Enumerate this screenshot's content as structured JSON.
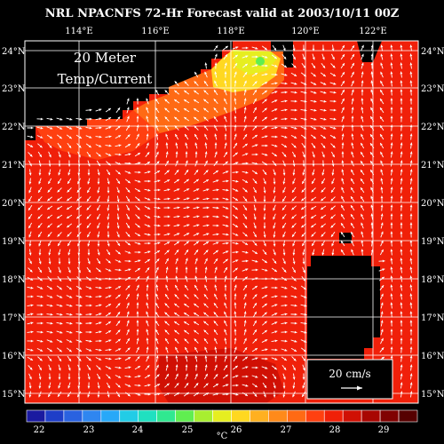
{
  "title": "NRL NPACNFS 72-Hr Forecast valid at 2003/10/11 00Z",
  "panel_label_line1": "20 Meter",
  "panel_label_line2": "Temp/Current",
  "scale_label": "20 cm/s",
  "longitude_labels": [
    "114°E",
    "116°E",
    "118°E",
    "120°E",
    "122°E"
  ],
  "latitude_labels": [
    "24°N",
    "23°N",
    "22°N",
    "21°N",
    "20°N",
    "19°N",
    "18°N",
    "17°N",
    "16°N",
    "15°N"
  ],
  "colorbar": {
    "unit": "°C",
    "tick_labels": [
      "22",
      "23",
      "24",
      "25",
      "26",
      "27",
      "28",
      "29"
    ],
    "colors": [
      "#1a1aa0",
      "#1e3ec8",
      "#2a62e0",
      "#2f86f0",
      "#28a8f8",
      "#22cce6",
      "#20e0c0",
      "#30e890",
      "#60ee50",
      "#a8ee30",
      "#e6ee20",
      "#ffd820",
      "#ffb020",
      "#ff8a1a",
      "#ff6a14",
      "#ff4010",
      "#f02008",
      "#d01004",
      "#a80602",
      "#800202",
      "#560000"
    ]
  },
  "colors": {
    "land": "#000000",
    "grid": "#ffffff",
    "arrow": "#ffffff",
    "sea": "#f0200a"
  }
}
